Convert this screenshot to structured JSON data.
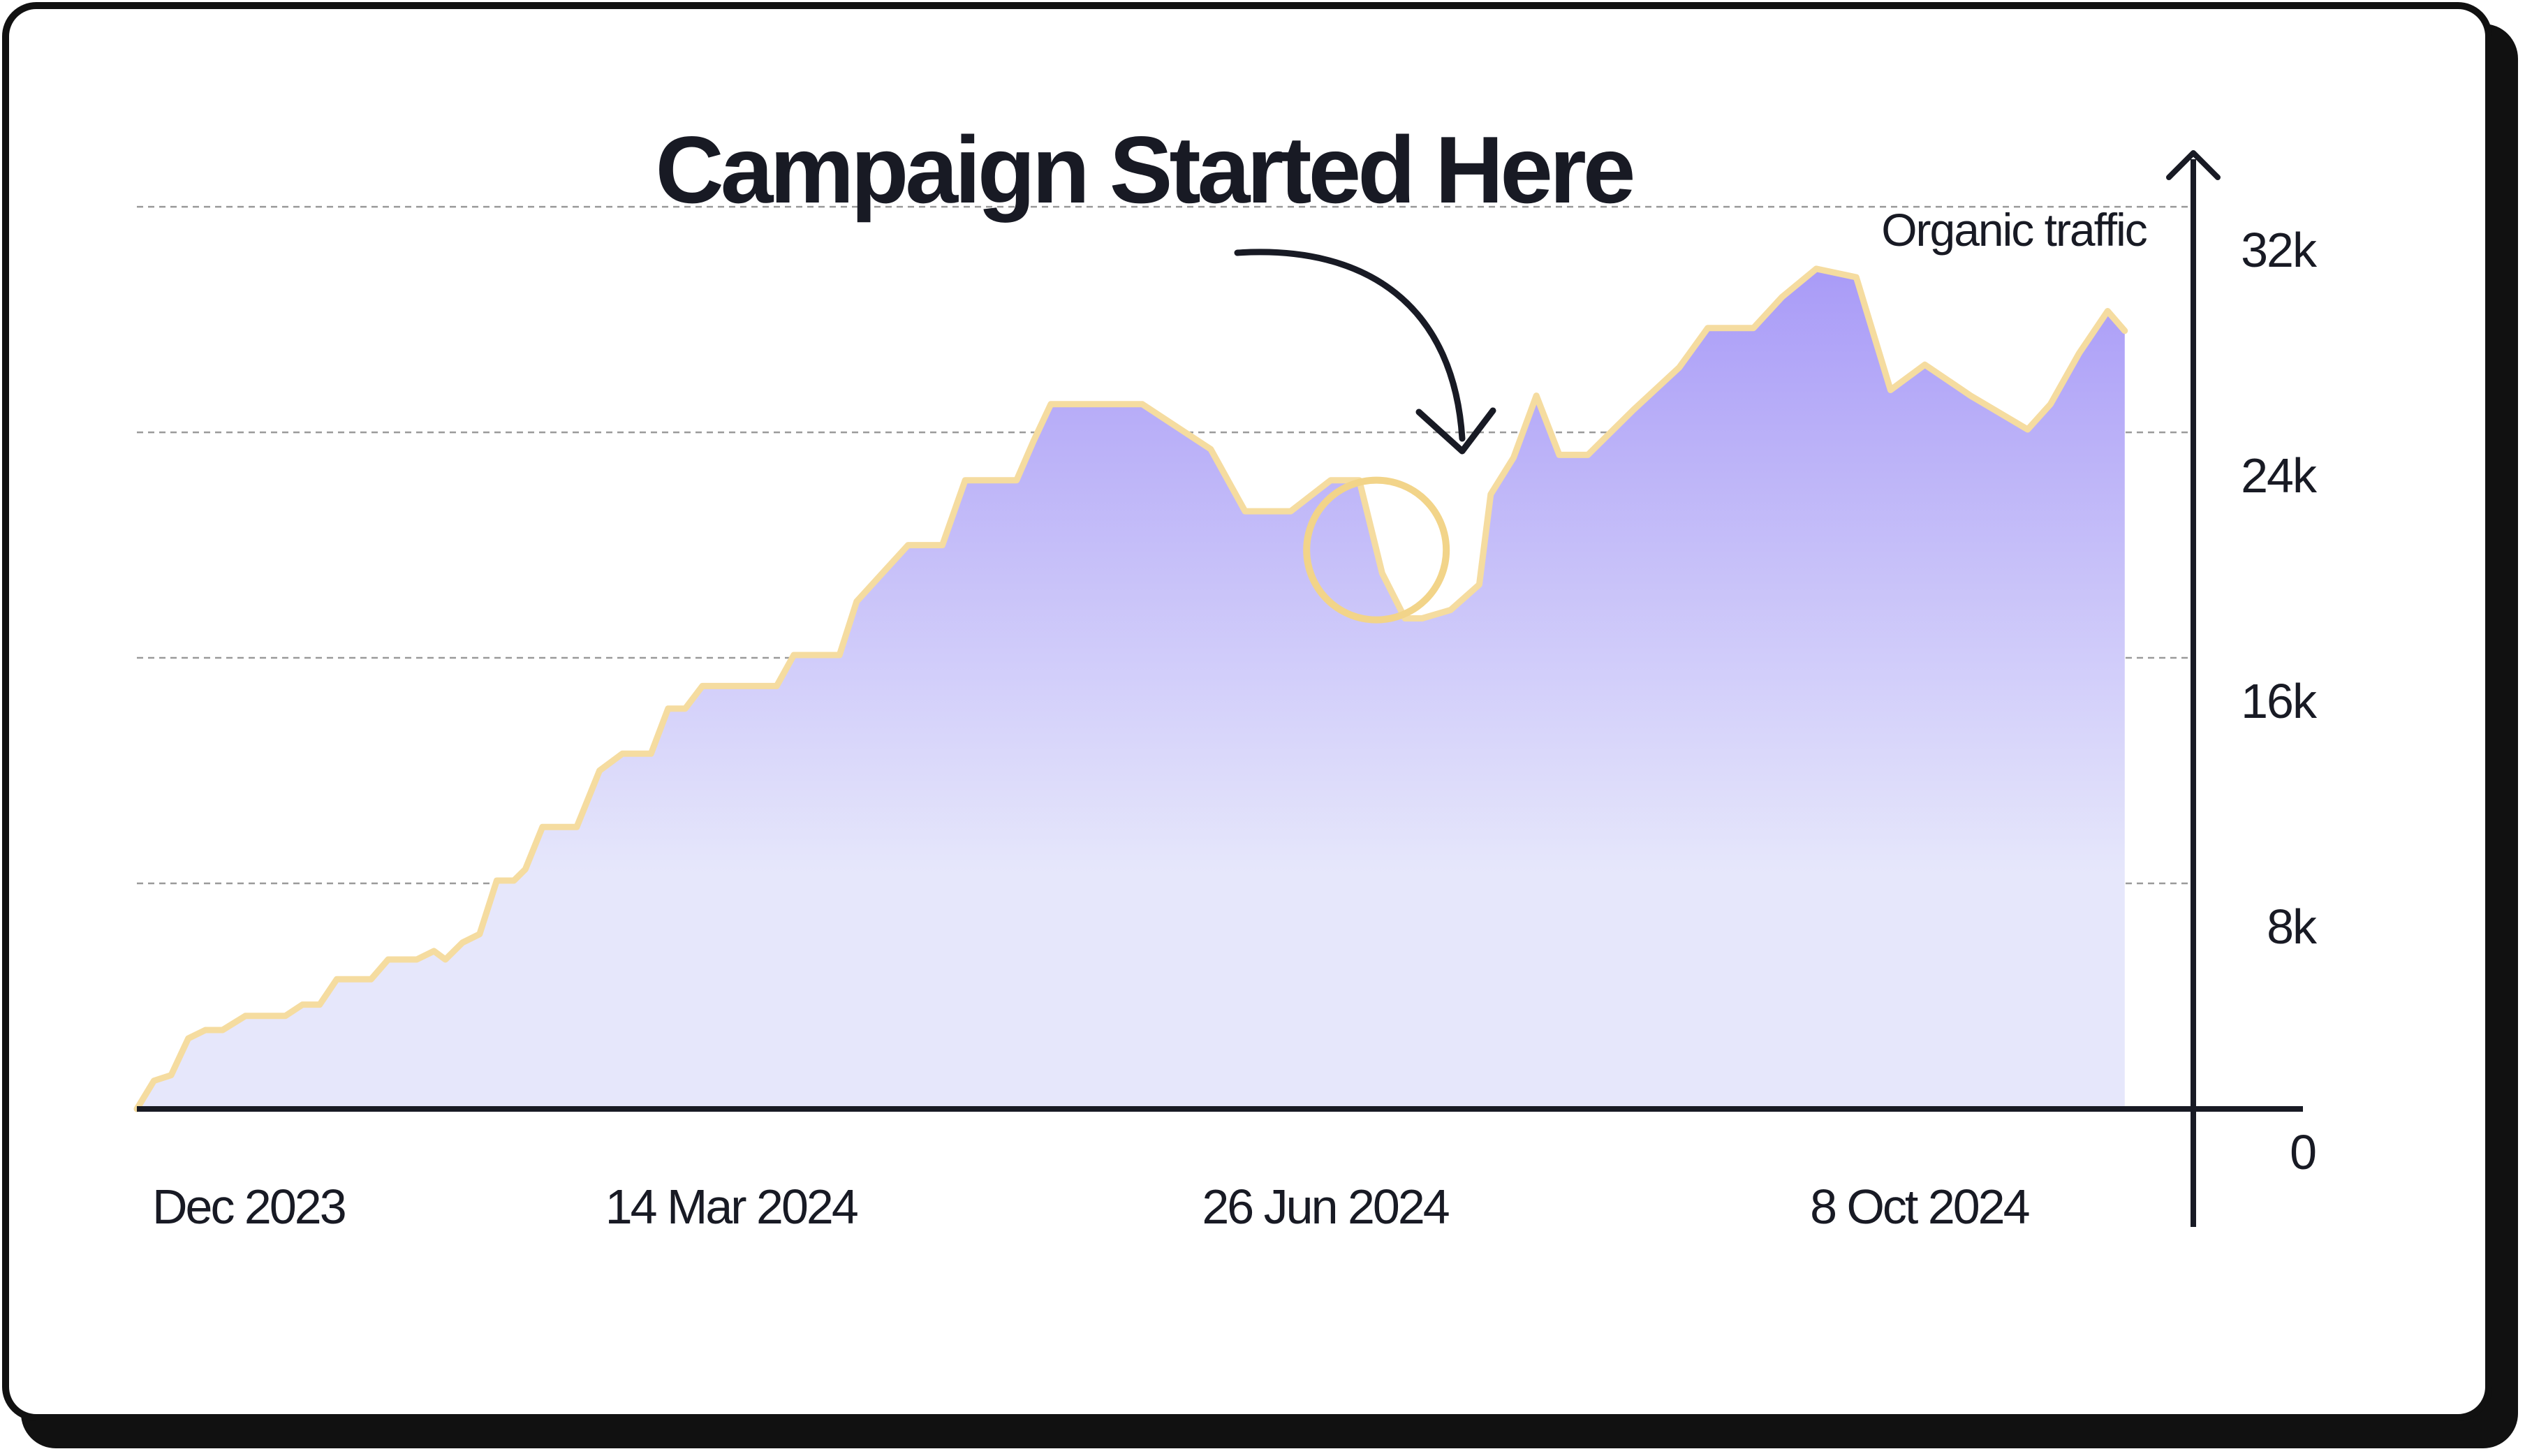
{
  "annotation": {
    "label": "Campaign Started Here",
    "marker_date": "2024-07-05"
  },
  "colors": {
    "card_border": "#111111",
    "line": "#f5dca0",
    "fill_top": "#a99bf7",
    "fill_bottom": "#e6e7fb",
    "gridline": "#9a9a9a",
    "text": "#181a24",
    "marker": "#f2d489"
  },
  "chart_data": {
    "type": "area",
    "title": "",
    "annotation": "Campaign Started Here",
    "xlabel": "",
    "ylabel": "Organic traffic",
    "y_axis_side": "right",
    "ylim": [
      0,
      35000
    ],
    "xlim": [
      "2023-12-01",
      "2024-11-25"
    ],
    "y_ticks": [
      {
        "value": 0,
        "label": "0"
      },
      {
        "value": 8000,
        "label": "8k"
      },
      {
        "value": 16000,
        "label": "16k"
      },
      {
        "value": 24000,
        "label": "24k"
      },
      {
        "value": 32000,
        "label": "32k"
      }
    ],
    "x_ticks": [
      {
        "value": "2023-12-01",
        "label": "Dec 2023"
      },
      {
        "value": "2024-03-14",
        "label": "14 Mar 2024"
      },
      {
        "value": "2024-06-26",
        "label": "26 Jun 2024"
      },
      {
        "value": "2024-10-08",
        "label": "8 Oct 2024"
      }
    ],
    "grid": {
      "horizontal": true,
      "vertical": false,
      "style": "dashed"
    },
    "series": [
      {
        "x": [
          "2023-12-01",
          "2023-12-04",
          "2023-12-07",
          "2023-12-10",
          "2023-12-10",
          "2023-12-13",
          "2023-12-16",
          "2023-12-20",
          "2023-12-23",
          "2023-12-27",
          "2023-12-30",
          "2024-01-02",
          "2024-01-05",
          "2024-01-08",
          "2024-01-11",
          "2024-01-14",
          "2024-01-19",
          "2024-01-22",
          "2024-01-24",
          "2024-01-27",
          "2024-01-30",
          "2024-02-02",
          "2024-02-05",
          "2024-02-07",
          "2024-02-07",
          "2024-02-10",
          "2024-02-14",
          "2024-02-16",
          "2024-02-16",
          "2024-02-20",
          "2024-02-24",
          "2024-02-29",
          "2024-03-03",
          "2024-03-06",
          "2024-03-09",
          "2024-03-13",
          "2024-03-16",
          "2024-03-22",
          "2024-03-25",
          "2024-04-02",
          "2024-04-05",
          "2024-04-14",
          "2024-04-20",
          "2024-04-24",
          "2024-05-03",
          "2024-05-03",
          "2024-05-06",
          "2024-05-09",
          "2024-05-14",
          "2024-05-20",
          "2024-05-25",
          "2024-06-06",
          "2024-06-12",
          "2024-06-20",
          "2024-06-27",
          "2024-07-02",
          "2024-07-06",
          "2024-07-10",
          "2024-07-13",
          "2024-07-18",
          "2024-07-23",
          "2024-07-25",
          "2024-07-29",
          "2024-08-02",
          "2024-08-06",
          "2024-08-11",
          "2024-08-19",
          "2024-08-27",
          "2024-09-01",
          "2024-09-05",
          "2024-09-09",
          "2024-09-14",
          "2024-09-20",
          "2024-09-27",
          "2024-10-03",
          "2024-10-09",
          "2024-10-17",
          "2024-10-27",
          "2024-10-31",
          "2024-11-05",
          "2024-11-10",
          "2024-11-13"
        ],
        "y": [
          0,
          1000,
          1200,
          2500,
          2500,
          2800,
          2800,
          3300,
          3300,
          3300,
          3700,
          3700,
          4600,
          4600,
          4600,
          5300,
          5300,
          5600,
          5300,
          5900,
          6200,
          8100,
          8100,
          8500,
          8500,
          10000,
          10000,
          10000,
          10000,
          12000,
          12600,
          12600,
          14200,
          14200,
          15000,
          15000,
          15000,
          15000,
          16100,
          16100,
          18000,
          20000,
          20000,
          22300,
          22300,
          22300,
          23700,
          25000,
          25000,
          25000,
          25000,
          23400,
          21200,
          21200,
          22300,
          22300,
          19000,
          17400,
          17400,
          17700,
          18600,
          21800,
          23100,
          25300,
          23200,
          23200,
          24800,
          26300,
          27700,
          27700,
          27700,
          28800,
          29800,
          29500,
          25500,
          26400,
          25300,
          24100,
          25000,
          26800,
          28300,
          27600
        ]
      }
    ]
  }
}
